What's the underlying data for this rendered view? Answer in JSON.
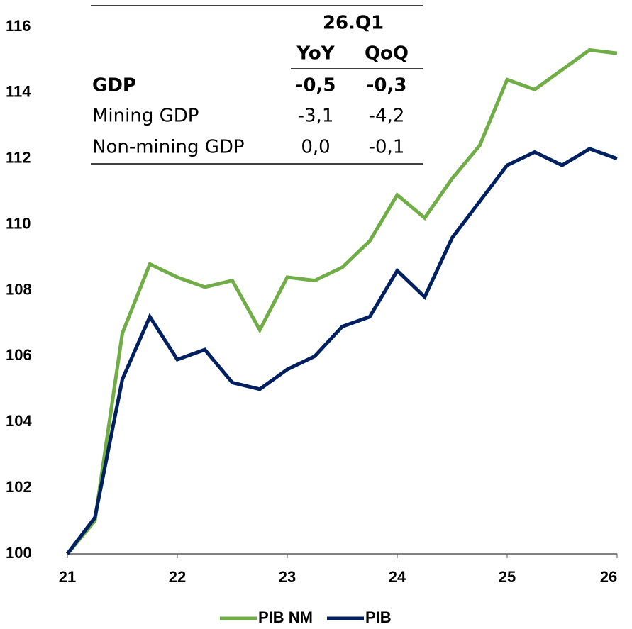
{
  "chart_data": {
    "type": "line",
    "x": [
      21,
      21.25,
      21.5,
      21.75,
      22,
      22.25,
      22.5,
      22.75,
      23,
      23.25,
      23.5,
      23.75,
      24,
      24.25,
      24.5,
      24.75,
      25,
      25.25,
      25.5,
      25.75,
      26
    ],
    "series": [
      {
        "name": "PIB NM",
        "color": "#70ad47",
        "values": [
          100,
          101.0,
          106.7,
          108.8,
          108.4,
          108.1,
          108.3,
          106.8,
          108.4,
          108.3,
          108.7,
          109.5,
          110.9,
          110.2,
          111.4,
          112.4,
          114.4,
          114.1,
          114.7,
          115.3,
          115.2
        ]
      },
      {
        "name": "PIB",
        "color": "#002060",
        "values": [
          100,
          101.1,
          105.3,
          107.2,
          105.9,
          106.2,
          105.2,
          105.0,
          105.6,
          106.0,
          106.9,
          107.2,
          108.6,
          107.8,
          109.6,
          110.7,
          111.8,
          112.2,
          111.8,
          112.3,
          112.0
        ]
      }
    ],
    "xlim": [
      21,
      26
    ],
    "xticks": [
      21,
      22,
      23,
      24,
      25,
      26
    ],
    "ylim": [
      100,
      116
    ],
    "yticks": [
      100,
      102,
      104,
      106,
      108,
      110,
      112,
      114,
      116
    ],
    "grid": false,
    "legend": "bottom"
  },
  "table": {
    "period": "26.Q1",
    "columns": [
      "YoY",
      "QoQ"
    ],
    "rows": [
      [
        "GDP",
        "-0,5",
        "-0,3"
      ],
      [
        "Mining GDP",
        "-3,1",
        "-4,2"
      ],
      [
        "Non-mining GDP",
        "0,0",
        "-0,1"
      ]
    ]
  }
}
